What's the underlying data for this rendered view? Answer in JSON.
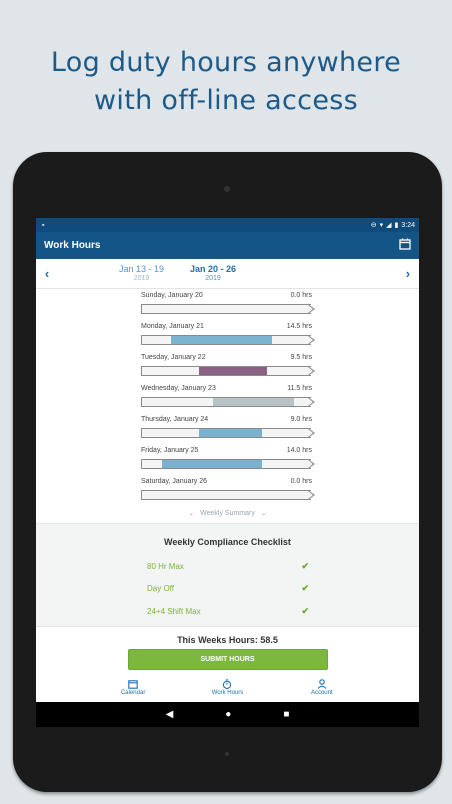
{
  "headline": {
    "line1": "Log duty hours anywhere",
    "line2": "with off-line access"
  },
  "status": {
    "time": "3:24"
  },
  "app": {
    "title": "Work Hours"
  },
  "weeks": {
    "prev": {
      "range": "Jan 13 - 19",
      "year": "2019"
    },
    "current": {
      "range": "Jan 20 - 26",
      "year": "2019"
    }
  },
  "days": [
    {
      "label": "Sunday, January 20",
      "hours": "0.0 hrs",
      "start": 0,
      "end": 0,
      "color": "#7ab2cf"
    },
    {
      "label": "Monday, January 21",
      "hours": "14.5 hrs",
      "start": 0.17,
      "end": 0.77,
      "color": "#7ab2cf"
    },
    {
      "label": "Tuesday, January 22",
      "hours": "9.5 hrs",
      "start": 0.34,
      "end": 0.74,
      "color": "#8a6283"
    },
    {
      "label": "Wednesday, January 23",
      "hours": "11.5 hrs",
      "start": 0.42,
      "end": 0.9,
      "color": "#b8c3c8"
    },
    {
      "label": "Thursday, January 24",
      "hours": "9.0 hrs",
      "start": 0.34,
      "end": 0.71,
      "color": "#7ab2cf"
    },
    {
      "label": "Friday, January 25",
      "hours": "14.0 hrs",
      "start": 0.12,
      "end": 0.71,
      "color": "#7ab2cf"
    },
    {
      "label": "Saturday, January 26",
      "hours": "0.0 hrs",
      "start": 0,
      "end": 0,
      "color": "#7ab2cf"
    }
  ],
  "summary_toggle": "Weekly Summary",
  "compliance": {
    "title": "Weekly Compliance Checklist",
    "items": [
      {
        "label": "80 Hr Max"
      },
      {
        "label": "Day Off"
      },
      {
        "label": "24+4 Shift Max"
      }
    ]
  },
  "totals": {
    "label": "This Weeks Hours: 58.5"
  },
  "submit_label": "SUBMIT HOURS",
  "tabs": [
    {
      "label": "Calendar",
      "icon": "calendar-icon"
    },
    {
      "label": "Work Hours",
      "icon": "stopwatch-icon"
    },
    {
      "label": "Account",
      "icon": "person-icon"
    }
  ],
  "colors": {
    "appbar": "#145588",
    "accent": "#1c6fb0",
    "submit": "#7cb83e",
    "check": "#6aaa2c"
  }
}
